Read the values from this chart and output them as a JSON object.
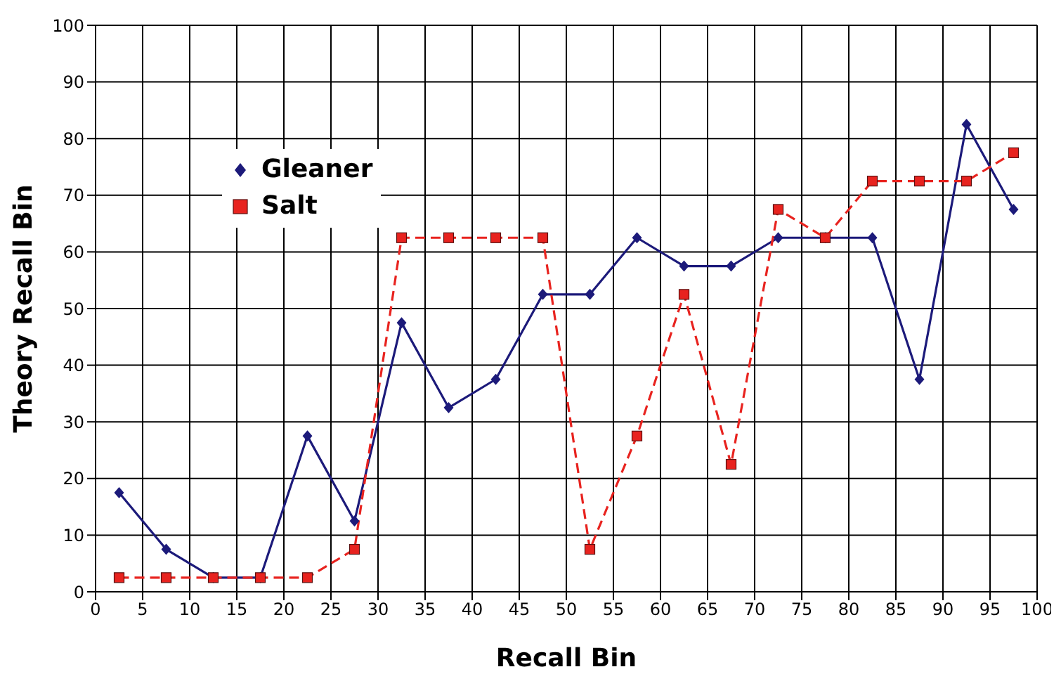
{
  "chart_data": {
    "type": "line",
    "xlabel": "Recall Bin",
    "ylabel": "Theory Recall Bin",
    "x": [
      2.5,
      7.5,
      12.5,
      17.5,
      22.5,
      27.5,
      32.5,
      37.5,
      42.5,
      47.5,
      52.5,
      57.5,
      62.5,
      67.5,
      72.5,
      77.5,
      82.5,
      87.5,
      92.5,
      97.5
    ],
    "series": [
      {
        "name": "Gleaner",
        "color": "#1c1a7a",
        "marker": "diamond",
        "line_style": "solid",
        "values": [
          17.5,
          7.5,
          2.5,
          2.5,
          27.5,
          12.5,
          47.5,
          32.5,
          37.5,
          52.5,
          52.5,
          62.5,
          57.5,
          57.5,
          62.5,
          62.5,
          62.5,
          37.5,
          82.5,
          67.5
        ]
      },
      {
        "name": "Salt",
        "color": "#e8231f",
        "marker": "square",
        "line_style": "dashed",
        "values": [
          2.5,
          2.5,
          2.5,
          2.5,
          2.5,
          7.5,
          62.5,
          62.5,
          62.5,
          62.5,
          7.5,
          27.5,
          52.5,
          22.5,
          67.5,
          62.5,
          72.5,
          72.5,
          72.5,
          77.5
        ]
      }
    ],
    "xlim": [
      0,
      100
    ],
    "xticks": [
      0,
      5,
      10,
      15,
      20,
      25,
      30,
      35,
      40,
      45,
      50,
      55,
      60,
      65,
      70,
      75,
      80,
      85,
      90,
      95,
      100
    ],
    "ylim": [
      0,
      100
    ],
    "yticks": [
      0,
      10,
      20,
      30,
      40,
      50,
      60,
      70,
      80,
      90,
      100
    ],
    "grid": true,
    "legend": "top left"
  }
}
